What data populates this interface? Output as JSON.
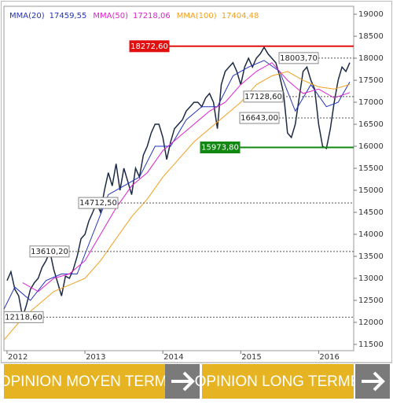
{
  "chart_data": {
    "type": "line",
    "x": [
      2012.0,
      2012.05,
      2012.1,
      2012.15,
      2012.2,
      2012.25,
      2012.3,
      2012.35,
      2012.4,
      2012.45,
      2012.5,
      2012.55,
      2012.6,
      2012.65,
      2012.7,
      2012.75,
      2012.8,
      2012.85,
      2012.9,
      2012.95,
      2013.0,
      2013.05,
      2013.1,
      2013.15,
      2013.2,
      2013.25,
      2013.3,
      2013.35,
      2013.4,
      2013.45,
      2013.5,
      2013.55,
      2013.6,
      2013.65,
      2013.7,
      2013.75,
      2013.8,
      2013.85,
      2013.9,
      2013.95,
      2014.0,
      2014.05,
      2014.1,
      2014.15,
      2014.2,
      2014.25,
      2014.3,
      2014.35,
      2014.4,
      2014.45,
      2014.5,
      2014.55,
      2014.6,
      2014.65,
      2014.7,
      2014.75,
      2014.8,
      2014.85,
      2014.9,
      2014.95,
      2015.0,
      2015.05,
      2015.1,
      2015.15,
      2015.2,
      2015.25,
      2015.3,
      2015.35,
      2015.4,
      2015.45,
      2015.5,
      2015.55,
      2015.6,
      2015.65,
      2015.7,
      2015.75,
      2015.8,
      2015.85,
      2015.9,
      2015.95,
      2016.0,
      2016.05,
      2016.1,
      2016.15,
      2016.2,
      2016.25,
      2016.3,
      2016.35,
      2016.4
    ],
    "series": [
      {
        "color": "#1c2a44",
        "values": [
          12950,
          13150,
          12750,
          12600,
          12118,
          12400,
          12750,
          12900,
          13000,
          13250,
          13400,
          13610,
          13200,
          12900,
          12600,
          13050,
          13000,
          13200,
          13500,
          13900,
          14000,
          14300,
          14500,
          14712,
          14500,
          15000,
          15400,
          15100,
          15600,
          15000,
          15500,
          15200,
          14900,
          15500,
          15300,
          15800,
          16000,
          16300,
          16500,
          16500,
          16200,
          15700,
          16100,
          16400,
          16500,
          16600,
          16800,
          16900,
          17000,
          17000,
          16900,
          17100,
          17200,
          17000,
          16400,
          17400,
          17700,
          17800,
          17900,
          17700,
          17400,
          17800,
          18000,
          17800,
          18000,
          18100,
          18250,
          18100,
          18000,
          17900,
          17600,
          17200,
          16300,
          16200,
          16500,
          17100,
          17700,
          17800,
          17500,
          17300,
          16500,
          16000,
          15950,
          16400,
          17000,
          17500,
          17800,
          17700,
          17900
        ]
      },
      {
        "name": "MMA(20)",
        "color": "#2233bb",
        "last": {
          "value": 17459.55,
          "label": "17459,55"
        },
        "x": [
          2011.96,
          2012.1,
          2012.3,
          2012.5,
          2012.7,
          2012.9,
          2013.1,
          2013.3,
          2013.5,
          2013.7,
          2013.9,
          2014.1,
          2014.3,
          2014.5,
          2014.7,
          2014.9,
          2015.1,
          2015.3,
          2015.5,
          2015.7,
          2015.9,
          2016.1,
          2016.25,
          2016.4
        ],
        "values": [
          12300,
          12800,
          12500,
          12950,
          13100,
          13100,
          14000,
          14900,
          15100,
          15300,
          16000,
          16000,
          16600,
          16900,
          16900,
          17600,
          17800,
          17950,
          17700,
          16800,
          17400,
          16900,
          17000,
          17459.55
        ]
      },
      {
        "name": "MMA(50)",
        "color": "#dd22cc",
        "last": {
          "value": 17218.06,
          "label": "17218,06"
        },
        "x": [
          2012.2,
          2012.4,
          2012.6,
          2012.8,
          2013.0,
          2013.2,
          2013.4,
          2013.6,
          2013.8,
          2014.0,
          2014.2,
          2014.4,
          2014.6,
          2014.8,
          2015.0,
          2015.2,
          2015.4,
          2015.6,
          2015.8,
          2016.0,
          2016.2,
          2016.4
        ],
        "values": [
          12900,
          12700,
          13000,
          13100,
          13400,
          14000,
          14600,
          15100,
          15400,
          15900,
          16200,
          16500,
          16800,
          17000,
          17400,
          17700,
          17900,
          17500,
          17200,
          17300,
          17100,
          17218.06
        ]
      },
      {
        "name": "MMA(100)",
        "color": "#f0a020",
        "last": {
          "value": 17404.48,
          "label": "17404,48"
        },
        "x": [
          2011.96,
          2012.2,
          2012.4,
          2012.6,
          2012.8,
          2013.0,
          2013.2,
          2013.4,
          2013.6,
          2013.8,
          2014.0,
          2014.2,
          2014.4,
          2014.6,
          2014.8,
          2015.0,
          2015.2,
          2015.4,
          2015.6,
          2015.8,
          2016.0,
          2016.2,
          2016.4
        ],
        "values": [
          11600,
          12100,
          12400,
          12700,
          12850,
          13000,
          13400,
          13900,
          14400,
          14800,
          15300,
          15700,
          16100,
          16400,
          16700,
          17000,
          17400,
          17600,
          17700,
          17500,
          17350,
          17300,
          17404.48
        ]
      }
    ],
    "levels": [
      {
        "value": 18272.6,
        "label": "18272,60",
        "color": "#e01010",
        "style": "solid"
      },
      {
        "value": 18003.7,
        "label": "18003,70",
        "color": "#555555",
        "style": "dotted"
      },
      {
        "value": 17128.6,
        "label": "17128,60",
        "color": "#555555",
        "style": "dotted"
      },
      {
        "value": 16643.0,
        "label": "16643,00",
        "color": "#555555",
        "style": "dotted"
      },
      {
        "value": 15973.8,
        "label": "15973,80",
        "color": "#118811",
        "style": "solid"
      },
      {
        "value": 14712.5,
        "label": "14712,50",
        "color": "#555555",
        "style": "dotted"
      },
      {
        "value": 13610.2,
        "label": "13610,20",
        "color": "#555555",
        "style": "dotted"
      },
      {
        "value": 12118.6,
        "label": "12118,60",
        "color": "#555555",
        "style": "dotted"
      }
    ],
    "xlim": [
      2011.96,
      2016.45
    ],
    "xticks": [
      2012,
      2013,
      2014,
      2015,
      2016
    ],
    "ylim": [
      11357,
      19180
    ],
    "yticks": [
      11500,
      12000,
      12500,
      13000,
      13500,
      14000,
      14500,
      15000,
      15500,
      16000,
      16500,
      17000,
      17500,
      18000,
      18500,
      19000
    ]
  },
  "buttons": [
    "OPINION MOYEN TERME",
    "OPINION LONG TERME"
  ]
}
